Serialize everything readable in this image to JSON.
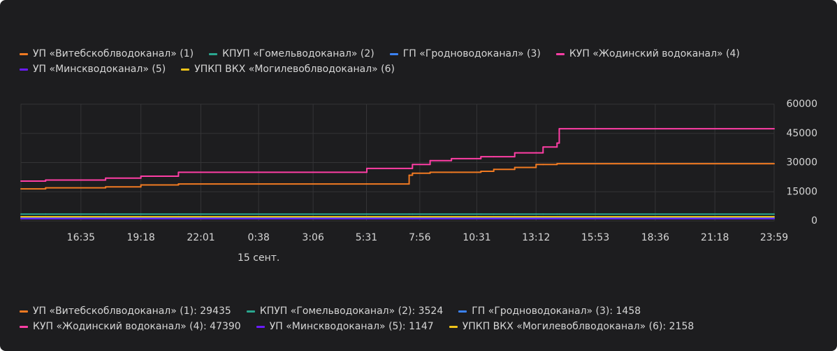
{
  "chart_data": {
    "type": "line",
    "step": "post",
    "x": [
      "13:52",
      "14:59",
      "17:42",
      "19:18",
      "21:00",
      "5:32",
      "7:27",
      "7:36",
      "8:24",
      "9:22",
      "10:42",
      "11:17",
      "12:14",
      "13:12",
      "13:31",
      "14:09",
      "14:15",
      "23:59"
    ],
    "series": [
      {
        "name": "УП «Витебскоблводоканал» (1)",
        "color": "#f07a22",
        "last_label": "УП «Витебскоблводоканал» (1): 29435",
        "values": [
          16500,
          17000,
          17500,
          18500,
          19000,
          19000,
          23500,
          24500,
          25000,
          25000,
          25500,
          26500,
          27500,
          29000,
          29000,
          29435,
          29435,
          29435
        ]
      },
      {
        "name": "КПУП «Гомельводоканал» (2)",
        "color": "#2aa78f",
        "last_label": "КПУП «Гомельводоканал» (2): 3524",
        "values": [
          3524,
          3524,
          3524,
          3524,
          3524,
          3524,
          3524,
          3524,
          3524,
          3524,
          3524,
          3524,
          3524,
          3524,
          3524,
          3524,
          3524,
          3524
        ]
      },
      {
        "name": "ГП «Гродноводоканал» (3)",
        "color": "#3b82f6",
        "last_label": "ГП «Гродноводоканал» (3): 1458",
        "values": [
          1458,
          1458,
          1458,
          1458,
          1458,
          1458,
          1458,
          1458,
          1458,
          1458,
          1458,
          1458,
          1458,
          1458,
          1458,
          1458,
          1458,
          1458
        ]
      },
      {
        "name": "КУП «Жодинский водоканал» (4)",
        "color": "#ff3ea5",
        "last_label": "КУП «Жодинский водоканал» (4): 47390",
        "values": [
          20500,
          21000,
          22000,
          23000,
          25000,
          27000,
          27000,
          29000,
          31000,
          32000,
          33000,
          33000,
          35000,
          35000,
          38000,
          40000,
          47390,
          47390
        ]
      },
      {
        "name": "УП «Минскводоканал» (5)",
        "color": "#6a1bff",
        "last_label": "УП «Минскводоканал» (5): 1147",
        "values": [
          1147,
          1147,
          1147,
          1147,
          1147,
          1147,
          1147,
          1147,
          1147,
          1147,
          1147,
          1147,
          1147,
          1147,
          1147,
          1147,
          1147,
          1147
        ]
      },
      {
        "name": "УПКП ВКХ «Могилевоблводоканал» (6)",
        "color": "#f0c419",
        "last_label": "УПКП ВКХ «Могилевоблводоканал» (6): 2158",
        "values": [
          2158,
          2158,
          2158,
          2158,
          2158,
          2158,
          2158,
          2158,
          2158,
          2158,
          2158,
          2158,
          2158,
          2158,
          2158,
          2158,
          2158,
          2158
        ]
      }
    ],
    "xticks": [
      "16:35",
      "19:18",
      "22:01",
      "0:38",
      "3:06",
      "5:31",
      "7:56",
      "10:31",
      "13:12",
      "15:53",
      "18:36",
      "21:18",
      "23:59"
    ],
    "xtick_sublabels": [
      null,
      null,
      null,
      "15 сент.",
      null,
      null,
      null,
      null,
      null,
      null,
      null,
      null,
      null
    ],
    "ylim": [
      0,
      60000
    ],
    "yticks": [
      0,
      15000,
      30000,
      45000,
      60000
    ],
    "grid": true
  }
}
